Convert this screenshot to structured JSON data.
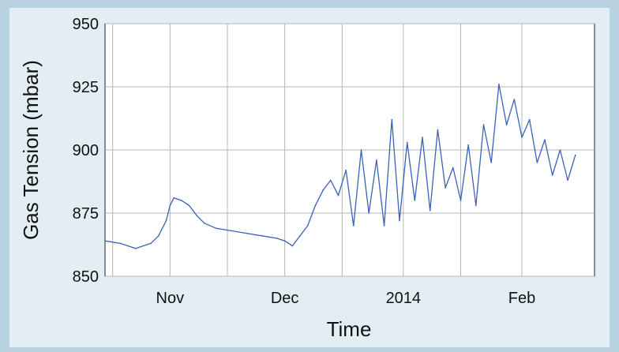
{
  "chart_data": {
    "type": "line",
    "title": "",
    "xlabel": "Time",
    "ylabel": "Gas Tension (mbar)",
    "ylim": [
      850,
      950
    ],
    "xlim": [
      "2013-10-15",
      "2014-02-20"
    ],
    "yticks": [
      850,
      875,
      900,
      925,
      950
    ],
    "xticks": [
      {
        "label": "Nov",
        "date": "2013-11-01"
      },
      {
        "label": "Dec",
        "date": "2013-12-01"
      },
      {
        "label": "2014",
        "date": "2014-01-01"
      },
      {
        "label": "Feb",
        "date": "2014-02-01"
      }
    ],
    "grid": true,
    "series_color": "#3a62b8",
    "series": [
      {
        "x": [
          "2013-10-15",
          "2013-10-19",
          "2013-10-23",
          "2013-10-27",
          "2013-10-29",
          "2013-10-31",
          "2013-11-01",
          "2013-11-02",
          "2013-11-04",
          "2013-11-06",
          "2013-11-08",
          "2013-11-10",
          "2013-11-13",
          "2013-11-17",
          "2013-11-21",
          "2013-11-25",
          "2013-11-29",
          "2013-12-01",
          "2013-12-03",
          "2013-12-05",
          "2013-12-07",
          "2013-12-09",
          "2013-12-11",
          "2013-12-13",
          "2013-12-15",
          "2013-12-17",
          "2013-12-19",
          "2013-12-21",
          "2013-12-23",
          "2013-12-25",
          "2013-12-27",
          "2013-12-29",
          "2013-12-31",
          "2014-01-02",
          "2014-01-04",
          "2014-01-06",
          "2014-01-08",
          "2014-01-10",
          "2014-01-12",
          "2014-01-14",
          "2014-01-16",
          "2014-01-18",
          "2014-01-20",
          "2014-01-22",
          "2014-01-24",
          "2014-01-26",
          "2014-01-28",
          "2014-01-30",
          "2014-02-01",
          "2014-02-03",
          "2014-02-05",
          "2014-02-07",
          "2014-02-09",
          "2014-02-11",
          "2014-02-13",
          "2014-02-15"
        ],
        "y": [
          864,
          863,
          861,
          863,
          866,
          872,
          878,
          881,
          880,
          878,
          874,
          871,
          869,
          868,
          867,
          866,
          865,
          864,
          862,
          866,
          870,
          878,
          884,
          888,
          882,
          892,
          870,
          900,
          875,
          896,
          870,
          912,
          872,
          903,
          880,
          905,
          876,
          908,
          885,
          893,
          880,
          902,
          878,
          910,
          895,
          926,
          910,
          920,
          905,
          912,
          895,
          904,
          890,
          900,
          888,
          898
        ]
      }
    ]
  }
}
